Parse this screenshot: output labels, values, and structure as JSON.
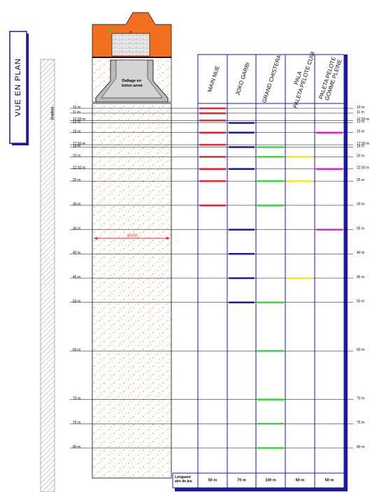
{
  "title": "VUE EN PLAN",
  "stands_label": "Gradins",
  "floor_label": [
    "Dallage en",
    "béton armé"
  ],
  "court_width_label": "36,000",
  "length_row_label": [
    "Longueur",
    "aire de jeu"
  ],
  "distances": [
    {
      "value": 10,
      "label": "10 m"
    },
    {
      "value": 11,
      "label": "11 m"
    },
    {
      "value": 12.5,
      "label": "12,50 m"
    },
    {
      "value": 13,
      "label": "13 m"
    },
    {
      "value": 15,
      "label": "15 m"
    },
    {
      "value": 17.5,
      "label": "17,50 m"
    },
    {
      "value": 18,
      "label": "18 m"
    },
    {
      "value": 20,
      "label": "20 m"
    },
    {
      "value": 22.5,
      "label": "22,50 m"
    },
    {
      "value": 25,
      "label": "25 m"
    },
    {
      "value": 30,
      "label": "30 m"
    },
    {
      "value": 35,
      "label": "35 m"
    },
    {
      "value": 40,
      "label": "40 m"
    },
    {
      "value": 45,
      "label": "45 m"
    },
    {
      "value": 50,
      "label": "50 m"
    },
    {
      "value": 60,
      "label": "60 m"
    },
    {
      "value": 70,
      "label": "70 m"
    },
    {
      "value": 75,
      "label": "75 m"
    },
    {
      "value": 80,
      "label": "80 m"
    }
  ],
  "columns": [
    {
      "name": [
        "MAIN NUE"
      ],
      "color": "#e8262a",
      "marks": [
        10,
        11,
        12.5,
        15,
        17.5,
        20,
        22.5,
        25,
        30
      ],
      "length": "50 m"
    },
    {
      "name": [
        "JOKO GARBI"
      ],
      "color": "#1a1aa6",
      "marks": [
        13,
        15,
        18,
        22.5,
        35,
        40,
        45,
        50
      ],
      "length": "70 m"
    },
    {
      "name": [
        "GRAND CHISTERA"
      ],
      "color": "#33dd33",
      "marks": [
        18,
        20,
        25,
        30,
        50,
        60,
        70,
        75,
        80
      ],
      "length": "100 m"
    },
    {
      "name": [
        "PALA",
        "PALETA PELOTE CUIR"
      ],
      "color": "#f2ea1c",
      "marks": [
        20,
        25,
        45
      ],
      "length": "60 m"
    },
    {
      "name": [
        "PALETA PELOTE",
        "GOMME PLEINE"
      ],
      "color": "#d62ad0",
      "marks": [
        15,
        22.5,
        35
      ],
      "length": "50 m"
    }
  ]
}
